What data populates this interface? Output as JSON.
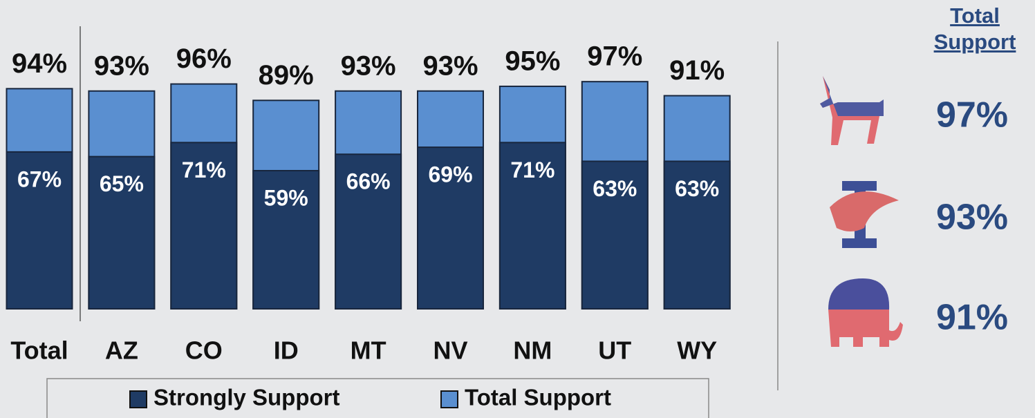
{
  "chart_data": {
    "type": "overlap-bar",
    "categories": [
      "Total",
      "AZ",
      "CO",
      "ID",
      "MT",
      "NV",
      "NM",
      "UT",
      "WY"
    ],
    "series": [
      {
        "name": "Strongly Support",
        "color": "#1f3b64",
        "values": [
          67,
          65,
          71,
          59,
          66,
          69,
          71,
          63,
          63
        ],
        "value_labels": [
          "67%",
          "65%",
          "71%",
          "59%",
          "66%",
          "69%",
          "71%",
          "63%",
          "63%"
        ]
      },
      {
        "name": "Total Support",
        "color": "#5a8fd0",
        "values": [
          94,
          93,
          96,
          89,
          93,
          93,
          95,
          97,
          91
        ],
        "value_labels": [
          "94%",
          "93%",
          "96%",
          "89%",
          "93%",
          "93%",
          "95%",
          "97%",
          "91%"
        ]
      }
    ],
    "ylim": [
      0,
      100
    ],
    "legend": "bottom"
  },
  "party_panel": {
    "heading": "Total Support",
    "values": [
      "97%",
      "93%",
      "91%"
    ]
  }
}
